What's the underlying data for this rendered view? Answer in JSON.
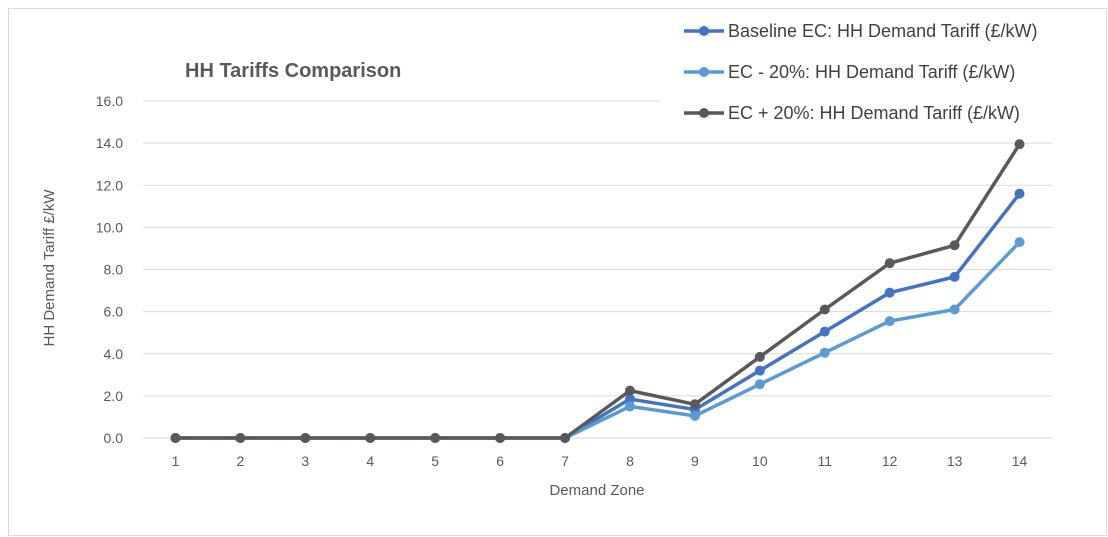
{
  "chart_data": {
    "type": "line",
    "title": "HH Tariffs Comparison",
    "xlabel": "Demand Zone",
    "ylabel": "HH Demand Tariff £/kW",
    "categories": [
      "1",
      "2",
      "3",
      "4",
      "5",
      "6",
      "7",
      "8",
      "9",
      "10",
      "11",
      "12",
      "13",
      "14"
    ],
    "ylim": [
      0,
      16
    ],
    "yticks": [
      "0.0",
      "2.0",
      "4.0",
      "6.0",
      "8.0",
      "10.0",
      "12.0",
      "14.0",
      "16.0"
    ],
    "grid": true,
    "legend_position": "top-right",
    "series": [
      {
        "name": "Baseline EC: HH Demand Tariff (£/kW)",
        "color": "#4472C4",
        "values": [
          0,
          0,
          0,
          0,
          0,
          0,
          0,
          1.85,
          1.35,
          3.2,
          5.05,
          6.9,
          7.65,
          11.6
        ]
      },
      {
        "name": "EC - 20%: HH Demand Tariff (£/kW)",
        "color": "#5B9BD5",
        "values": [
          0,
          0,
          0,
          0,
          0,
          0,
          0,
          1.5,
          1.05,
          2.55,
          4.05,
          5.55,
          6.1,
          9.3
        ]
      },
      {
        "name": "EC + 20%: HH Demand Tariff (£/kW)",
        "color": "#595959",
        "values": [
          0,
          0,
          0,
          0,
          0,
          0,
          0,
          2.25,
          1.6,
          3.85,
          6.1,
          8.3,
          9.15,
          13.95
        ]
      }
    ]
  }
}
